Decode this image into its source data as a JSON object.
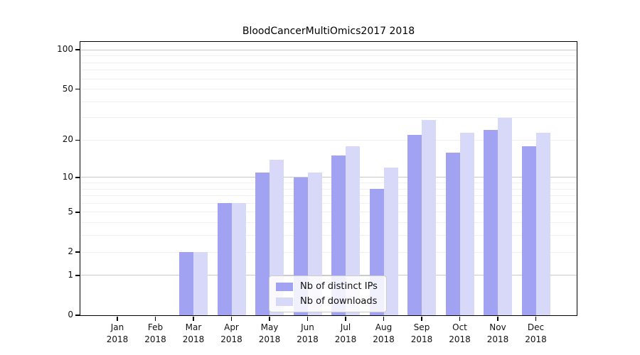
{
  "chart_data": {
    "type": "bar",
    "title": "BloodCancerMultiOmics2017 2018",
    "categories": [
      "Jan",
      "Feb",
      "Mar",
      "Apr",
      "May",
      "Jun",
      "Jul",
      "Aug",
      "Sep",
      "Oct",
      "Nov",
      "Dec"
    ],
    "x_year_label": "2018",
    "series": [
      {
        "name": "Nb of distinct IPs",
        "color": "#a2a2f2",
        "values": [
          0,
          0,
          2,
          6,
          11,
          10,
          15,
          8,
          22,
          16,
          24,
          18
        ]
      },
      {
        "name": "Nb of downloads",
        "color": "#d8d8f8",
        "values": [
          0,
          0,
          2,
          6,
          14,
          11,
          18,
          12,
          29,
          23,
          30,
          23
        ]
      }
    ],
    "xlabel": "",
    "ylabel": "",
    "yscale": "log1p",
    "ylim": [
      0,
      115
    ],
    "y_ticks": [
      0,
      1,
      2,
      5,
      10,
      20,
      50,
      100
    ],
    "y_major_gridlines": [
      1,
      10,
      100
    ],
    "y_minor_gridlines": [
      2,
      3,
      4,
      5,
      6,
      7,
      8,
      9,
      20,
      30,
      40,
      50,
      60,
      70,
      80,
      90
    ],
    "grid": "horizontal",
    "legend_position": "lower center"
  },
  "colors": {
    "axis": "#000000",
    "grid_major": "#c9c9c9",
    "grid_minor": "#f0f0f0",
    "background": "#ffffff"
  }
}
